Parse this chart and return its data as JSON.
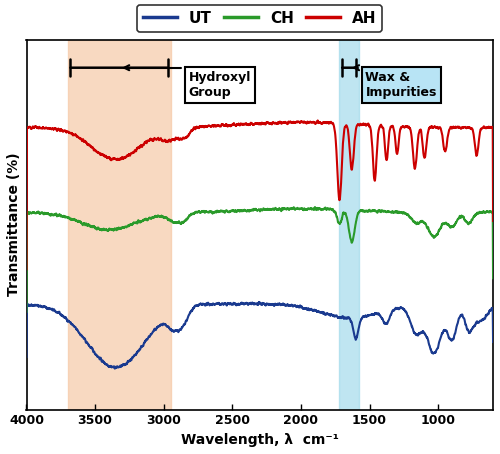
{
  "x_min": 600,
  "x_max": 4000,
  "xlabel": "Wavelength, λ  cm⁻¹",
  "ylabel": "Transmittance (%)",
  "legend_labels": [
    "UT",
    "CH",
    "AH"
  ],
  "legend_colors": [
    "#1a3a8f",
    "#2a9a2a",
    "#cc0000"
  ],
  "orange_region": [
    2950,
    3700
  ],
  "blue_region": [
    1580,
    1720
  ],
  "annotation1_text": "Hydroxyl\nGroup",
  "annotation2_text": "Wax &\nImpurities",
  "background_color": "#ffffff",
  "ax_background": "#ffffff"
}
